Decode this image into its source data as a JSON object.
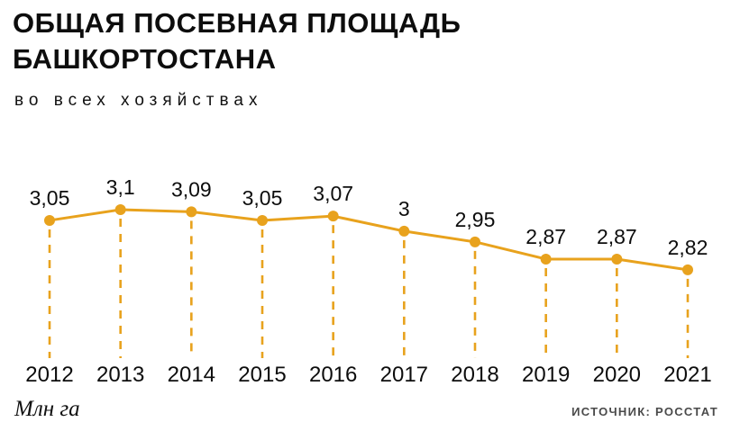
{
  "header": {
    "title_line1": "ОБЩАЯ ПОСЕВНАЯ ПЛОЩАДЬ",
    "title_line2": "БАШКОРТОСТАНА",
    "subtitle": "во всех хозяйствах"
  },
  "footer": {
    "unit_label": "Млн га",
    "source_label": "ИСТОЧНИК: РОССТАТ"
  },
  "colors": {
    "accent": "#E8A21D",
    "text": "#0d0d0d",
    "source_text": "#4a4a4a"
  },
  "chart_data": {
    "type": "line",
    "title": "Общая посевная площадь Башкортостана во всех хозяйствах",
    "categories": [
      "2012",
      "2013",
      "2014",
      "2015",
      "2016",
      "2017",
      "2018",
      "2019",
      "2020",
      "2021"
    ],
    "values": [
      3.05,
      3.1,
      3.09,
      3.05,
      3.07,
      3.0,
      2.95,
      2.87,
      2.87,
      2.82
    ],
    "value_labels": [
      "3,05",
      "3,1",
      "3,09",
      "3,05",
      "3,07",
      "3",
      "2,95",
      "2,87",
      "2,87",
      "2,82"
    ],
    "xlabel": "",
    "ylabel": "Млн га",
    "ylim": [
      2.7,
      3.2
    ],
    "grid": false,
    "legend": false,
    "style": {
      "line_color": "#E8A21D",
      "marker": "circle",
      "stems": "dashed-vertical",
      "source": "ИСТОЧНИК: РОССТАТ"
    }
  }
}
